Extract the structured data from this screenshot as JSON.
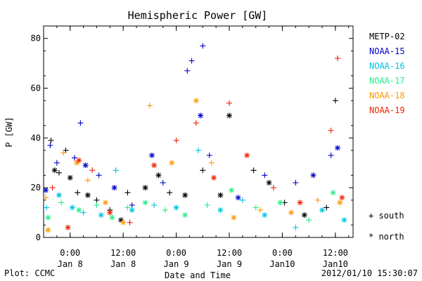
{
  "chart_data": {
    "type": "scatter",
    "title": "Hemispheric Power [GW]",
    "xlabel": "Date and Time",
    "ylabel": "P [GW]",
    "xlim": [
      "2012-01-07 18:00",
      "2012-01-10 16:00"
    ],
    "ylim": [
      0,
      85
    ],
    "y_ticks": [
      0,
      20,
      40,
      60,
      80
    ],
    "x_ticks": [
      {
        "time": "2012-01-08 00:00",
        "label_time": "0:00",
        "label_date": "Jan 8"
      },
      {
        "time": "2012-01-08 12:00",
        "label_time": "12:00",
        "label_date": "Jan 8"
      },
      {
        "time": "2012-01-09 00:00",
        "label_time": "0:00",
        "label_date": "Jan 9"
      },
      {
        "time": "2012-01-09 12:00",
        "label_time": "12:00",
        "label_date": "Jan 9"
      },
      {
        "time": "2012-01-10 00:00",
        "label_time": "0:00",
        "label_date": "Jan10"
      },
      {
        "time": "2012-01-10 12:00",
        "label_time": "12:00",
        "label_date": "Jan10"
      }
    ],
    "legend_position": "right",
    "symbol_legend": [
      {
        "symbol": "+",
        "label": "south"
      },
      {
        "symbol": "*",
        "label": "north"
      }
    ],
    "series": [
      {
        "name": "METP-02",
        "color": "#000000",
        "points": [
          {
            "t": "2012-01-07 19:40",
            "v": 39,
            "hemi": "south"
          },
          {
            "t": "2012-01-07 20:30",
            "v": 27,
            "hemi": "north"
          },
          {
            "t": "2012-01-07 21:30",
            "v": 26,
            "hemi": "south"
          },
          {
            "t": "2012-01-07 23:00",
            "v": 35,
            "hemi": "south"
          },
          {
            "t": "2012-01-08 00:00",
            "v": 24,
            "hemi": "north"
          },
          {
            "t": "2012-01-08 01:40",
            "v": 18,
            "hemi": "south"
          },
          {
            "t": "2012-01-08 04:00",
            "v": 17,
            "hemi": "north"
          },
          {
            "t": "2012-01-08 06:00",
            "v": 15,
            "hemi": "south"
          },
          {
            "t": "2012-01-08 09:00",
            "v": 11,
            "hemi": "south"
          },
          {
            "t": "2012-01-08 11:30",
            "v": 7,
            "hemi": "north"
          },
          {
            "t": "2012-01-08 13:00",
            "v": 18,
            "hemi": "south"
          },
          {
            "t": "2012-01-08 17:00",
            "v": 20,
            "hemi": "north"
          },
          {
            "t": "2012-01-08 20:00",
            "v": 25,
            "hemi": "north"
          },
          {
            "t": "2012-01-08 22:30",
            "v": 18,
            "hemi": "south"
          },
          {
            "t": "2012-01-09 02:00",
            "v": 17,
            "hemi": "north"
          },
          {
            "t": "2012-01-09 06:00",
            "v": 27,
            "hemi": "south"
          },
          {
            "t": "2012-01-09 10:00",
            "v": 17,
            "hemi": "north"
          },
          {
            "t": "2012-01-09 12:00",
            "v": 49,
            "hemi": "north"
          },
          {
            "t": "2012-01-09 17:30",
            "v": 27,
            "hemi": "south"
          },
          {
            "t": "2012-01-09 21:00",
            "v": 22,
            "hemi": "north"
          },
          {
            "t": "2012-01-10 00:30",
            "v": 14,
            "hemi": "south"
          },
          {
            "t": "2012-01-10 05:00",
            "v": 9,
            "hemi": "north"
          },
          {
            "t": "2012-01-10 10:00",
            "v": 12,
            "hemi": "south"
          },
          {
            "t": "2012-01-10 12:00",
            "v": 55,
            "hemi": "south"
          }
        ]
      },
      {
        "name": "NOAA-15",
        "color": "#0000cc",
        "points": [
          {
            "t": "2012-01-07 18:30",
            "v": 19,
            "hemi": "north"
          },
          {
            "t": "2012-01-07 19:30",
            "v": 37,
            "hemi": "south"
          },
          {
            "t": "2012-01-07 21:00",
            "v": 30,
            "hemi": "south"
          },
          {
            "t": "2012-01-08 01:00",
            "v": 32,
            "hemi": "south"
          },
          {
            "t": "2012-01-08 02:20",
            "v": 46,
            "hemi": "south"
          },
          {
            "t": "2012-01-08 03:30",
            "v": 29,
            "hemi": "north"
          },
          {
            "t": "2012-01-08 06:30",
            "v": 25,
            "hemi": "south"
          },
          {
            "t": "2012-01-08 10:00",
            "v": 20,
            "hemi": "north"
          },
          {
            "t": "2012-01-08 14:00",
            "v": 13,
            "hemi": "south"
          },
          {
            "t": "2012-01-08 18:30",
            "v": 33,
            "hemi": "north"
          },
          {
            "t": "2012-01-08 21:00",
            "v": 22,
            "hemi": "south"
          },
          {
            "t": "2012-01-09 02:30",
            "v": 67,
            "hemi": "south"
          },
          {
            "t": "2012-01-09 03:30",
            "v": 71,
            "hemi": "south"
          },
          {
            "t": "2012-01-09 05:30",
            "v": 49,
            "hemi": "north"
          },
          {
            "t": "2012-01-09 06:00",
            "v": 77,
            "hemi": "south"
          },
          {
            "t": "2012-01-09 07:30",
            "v": 33,
            "hemi": "south"
          },
          {
            "t": "2012-01-09 14:00",
            "v": 16,
            "hemi": "north"
          },
          {
            "t": "2012-01-09 20:00",
            "v": 25,
            "hemi": "south"
          },
          {
            "t": "2012-01-10 03:00",
            "v": 22,
            "hemi": "south"
          },
          {
            "t": "2012-01-10 07:00",
            "v": 25,
            "hemi": "north"
          },
          {
            "t": "2012-01-10 11:00",
            "v": 33,
            "hemi": "south"
          },
          {
            "t": "2012-01-10 12:30",
            "v": 36,
            "hemi": "north"
          }
        ]
      },
      {
        "name": "NOAA-16",
        "color": "#00c0e0",
        "points": [
          {
            "t": "2012-01-07 18:40",
            "v": 12,
            "hemi": "south"
          },
          {
            "t": "2012-01-07 21:30",
            "v": 17,
            "hemi": "north"
          },
          {
            "t": "2012-01-08 00:30",
            "v": 12,
            "hemi": "north"
          },
          {
            "t": "2012-01-08 03:00",
            "v": 10,
            "hemi": "south"
          },
          {
            "t": "2012-01-08 07:00",
            "v": 9,
            "hemi": "north"
          },
          {
            "t": "2012-01-08 10:20",
            "v": 27,
            "hemi": "south"
          },
          {
            "t": "2012-01-08 14:00",
            "v": 11,
            "hemi": "north"
          },
          {
            "t": "2012-01-08 19:00",
            "v": 13,
            "hemi": "south"
          },
          {
            "t": "2012-01-09 00:00",
            "v": 12,
            "hemi": "north"
          },
          {
            "t": "2012-01-09 05:00",
            "v": 35,
            "hemi": "south"
          },
          {
            "t": "2012-01-09 10:00",
            "v": 11,
            "hemi": "north"
          },
          {
            "t": "2012-01-09 15:00",
            "v": 15,
            "hemi": "south"
          },
          {
            "t": "2012-01-09 20:00",
            "v": 9,
            "hemi": "north"
          },
          {
            "t": "2012-01-10 03:00",
            "v": 4,
            "hemi": "south"
          },
          {
            "t": "2012-01-10 09:00",
            "v": 11,
            "hemi": "north"
          },
          {
            "t": "2012-01-10 14:00",
            "v": 7,
            "hemi": "north"
          }
        ]
      },
      {
        "name": "NOAA-17",
        "color": "#22ee88",
        "points": [
          {
            "t": "2012-01-07 19:00",
            "v": 8,
            "hemi": "north"
          },
          {
            "t": "2012-01-07 22:00",
            "v": 14,
            "hemi": "south"
          },
          {
            "t": "2012-01-08 02:00",
            "v": 11,
            "hemi": "north"
          },
          {
            "t": "2012-01-08 06:00",
            "v": 13,
            "hemi": "south"
          },
          {
            "t": "2012-01-08 09:30",
            "v": 8,
            "hemi": "north"
          },
          {
            "t": "2012-01-08 13:00",
            "v": 12,
            "hemi": "south"
          },
          {
            "t": "2012-01-08 17:00",
            "v": 14,
            "hemi": "north"
          },
          {
            "t": "2012-01-08 21:30",
            "v": 11,
            "hemi": "south"
          },
          {
            "t": "2012-01-09 02:00",
            "v": 9,
            "hemi": "north"
          },
          {
            "t": "2012-01-09 07:00",
            "v": 13,
            "hemi": "south"
          },
          {
            "t": "2012-01-09 12:30",
            "v": 19,
            "hemi": "north"
          },
          {
            "t": "2012-01-09 18:00",
            "v": 12,
            "hemi": "south"
          },
          {
            "t": "2012-01-09 23:30",
            "v": 14,
            "hemi": "north"
          },
          {
            "t": "2012-01-10 06:00",
            "v": 7,
            "hemi": "south"
          },
          {
            "t": "2012-01-10 11:30",
            "v": 18,
            "hemi": "north"
          }
        ]
      },
      {
        "name": "NOAA-18",
        "color": "#ff9900",
        "points": [
          {
            "t": "2012-01-07 18:30",
            "v": 16,
            "hemi": "south"
          },
          {
            "t": "2012-01-07 19:00",
            "v": 3,
            "hemi": "north"
          },
          {
            "t": "2012-01-07 22:30",
            "v": 34,
            "hemi": "south"
          },
          {
            "t": "2012-01-08 01:30",
            "v": 30,
            "hemi": "north"
          },
          {
            "t": "2012-01-08 04:00",
            "v": 23,
            "hemi": "south"
          },
          {
            "t": "2012-01-08 08:00",
            "v": 14,
            "hemi": "north"
          },
          {
            "t": "2012-01-08 12:00",
            "v": 6,
            "hemi": "north"
          },
          {
            "t": "2012-01-08 18:00",
            "v": 53,
            "hemi": "south"
          },
          {
            "t": "2012-01-08 23:00",
            "v": 30,
            "hemi": "north"
          },
          {
            "t": "2012-01-09 04:30",
            "v": 55,
            "hemi": "north"
          },
          {
            "t": "2012-01-09 08:00",
            "v": 30,
            "hemi": "south"
          },
          {
            "t": "2012-01-09 13:00",
            "v": 8,
            "hemi": "north"
          },
          {
            "t": "2012-01-09 19:00",
            "v": 11,
            "hemi": "south"
          },
          {
            "t": "2012-01-10 02:00",
            "v": 10,
            "hemi": "north"
          },
          {
            "t": "2012-01-10 08:00",
            "v": 15,
            "hemi": "south"
          },
          {
            "t": "2012-01-10 13:00",
            "v": 14,
            "hemi": "north"
          }
        ]
      },
      {
        "name": "NOAA-19",
        "color": "#ee2200",
        "points": [
          {
            "t": "2012-01-07 20:00",
            "v": 20,
            "hemi": "south"
          },
          {
            "t": "2012-01-07 23:30",
            "v": 4,
            "hemi": "north"
          },
          {
            "t": "2012-01-08 02:00",
            "v": 31,
            "hemi": "north"
          },
          {
            "t": "2012-01-08 05:00",
            "v": 27,
            "hemi": "south"
          },
          {
            "t": "2012-01-08 09:00",
            "v": 10,
            "hemi": "north"
          },
          {
            "t": "2012-01-08 13:30",
            "v": 6,
            "hemi": "south"
          },
          {
            "t": "2012-01-08 19:00",
            "v": 29,
            "hemi": "north"
          },
          {
            "t": "2012-01-09 00:00",
            "v": 39,
            "hemi": "south"
          },
          {
            "t": "2012-01-09 04:30",
            "v": 46,
            "hemi": "south"
          },
          {
            "t": "2012-01-09 08:30",
            "v": 24,
            "hemi": "north"
          },
          {
            "t": "2012-01-09 12:00",
            "v": 54,
            "hemi": "south"
          },
          {
            "t": "2012-01-09 16:00",
            "v": 33,
            "hemi": "north"
          },
          {
            "t": "2012-01-09 22:00",
            "v": 20,
            "hemi": "south"
          },
          {
            "t": "2012-01-10 04:00",
            "v": 14,
            "hemi": "north"
          },
          {
            "t": "2012-01-10 11:00",
            "v": 43,
            "hemi": "south"
          },
          {
            "t": "2012-01-10 12:30",
            "v": 72,
            "hemi": "south"
          },
          {
            "t": "2012-01-10 13:30",
            "v": 16,
            "hemi": "north"
          }
        ]
      }
    ]
  },
  "footer": {
    "left": "Plot: CCMC",
    "right": "2012/01/10 15:30:07"
  }
}
